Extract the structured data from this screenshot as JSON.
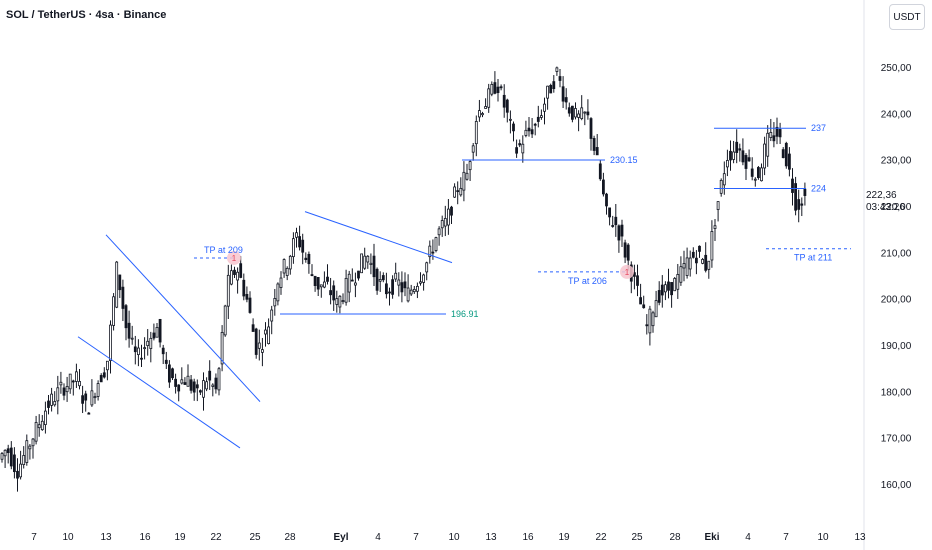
{
  "header": {
    "title": "SOL / TetherUS · 4sa · Binance",
    "currency": "USDT"
  },
  "last_price": {
    "value": "222,36",
    "countdown": "03:43:26"
  },
  "colors": {
    "candle": "#131722",
    "trendline": "#2962ff",
    "support_label": "#089981",
    "tp_marker": "#f7c5cf",
    "axis_text": "#131722"
  },
  "chart_data": {
    "type": "candlestick",
    "title": "SOL / TetherUS · 4sa · Binance",
    "y_axis": {
      "ticks": [
        250,
        240,
        230,
        220,
        210,
        200,
        190,
        180,
        170,
        160
      ],
      "tick_labels": [
        "250,00",
        "240,00",
        "230,00",
        "220,00",
        "210,00",
        "200,00",
        "190,00",
        "180,00",
        "170,00",
        "160,00"
      ],
      "range": [
        155,
        262
      ]
    },
    "x_axis": {
      "tick_labels": [
        "7",
        "10",
        "13",
        "16",
        "19",
        "22",
        "25",
        "28",
        "Eyl",
        "4",
        "7",
        "10",
        "13",
        "16",
        "19",
        "22",
        "25",
        "28",
        "Eki",
        "4",
        "7",
        "10",
        "13"
      ],
      "bold_labels": [
        "Eyl",
        "Eki"
      ]
    },
    "price_path": [
      [
        0,
        165
      ],
      [
        10,
        168
      ],
      [
        20,
        163
      ],
      [
        35,
        170
      ],
      [
        50,
        177
      ],
      [
        65,
        181
      ],
      [
        80,
        183
      ],
      [
        90,
        176
      ],
      [
        100,
        182
      ],
      [
        110,
        186
      ],
      [
        120,
        207
      ],
      [
        130,
        193
      ],
      [
        140,
        187
      ],
      [
        150,
        191
      ],
      [
        160,
        194
      ],
      [
        170,
        184
      ],
      [
        180,
        182
      ],
      [
        190,
        183
      ],
      [
        200,
        179
      ],
      [
        210,
        183
      ],
      [
        220,
        180
      ],
      [
        230,
        203
      ],
      [
        240,
        207
      ],
      [
        250,
        200
      ],
      [
        260,
        189
      ],
      [
        270,
        193
      ],
      [
        280,
        204
      ],
      [
        290,
        208
      ],
      [
        300,
        214
      ],
      [
        310,
        208
      ],
      [
        320,
        203
      ],
      [
        330,
        203
      ],
      [
        340,
        199
      ],
      [
        350,
        203
      ],
      [
        360,
        206
      ],
      [
        370,
        210
      ],
      [
        380,
        204
      ],
      [
        390,
        202
      ],
      [
        400,
        204
      ],
      [
        410,
        201
      ],
      [
        420,
        204
      ],
      [
        430,
        208
      ],
      [
        440,
        214
      ],
      [
        450,
        217
      ],
      [
        460,
        224
      ],
      [
        470,
        227
      ],
      [
        480,
        240
      ],
      [
        490,
        243
      ],
      [
        500,
        247
      ],
      [
        510,
        240
      ],
      [
        520,
        232
      ],
      [
        530,
        236
      ],
      [
        540,
        238
      ],
      [
        550,
        244
      ],
      [
        560,
        249
      ],
      [
        570,
        242
      ],
      [
        580,
        239
      ],
      [
        590,
        240
      ],
      [
        600,
        230
      ],
      [
        610,
        218
      ],
      [
        620,
        216
      ],
      [
        630,
        209
      ],
      [
        640,
        202
      ],
      [
        650,
        194
      ],
      [
        660,
        201
      ],
      [
        670,
        202
      ],
      [
        680,
        204
      ],
      [
        690,
        208
      ],
      [
        700,
        210
      ],
      [
        710,
        207
      ],
      [
        720,
        220
      ],
      [
        730,
        231
      ],
      [
        740,
        233
      ],
      [
        750,
        230
      ],
      [
        760,
        226
      ],
      [
        770,
        234
      ],
      [
        780,
        236
      ],
      [
        790,
        230
      ],
      [
        800,
        220
      ],
      [
        805,
        222
      ]
    ],
    "annotations": {
      "trendlines": [
        {
          "name": "wedge-upper",
          "from": [
            106,
            214
          ],
          "to": [
            260,
            178
          ]
        },
        {
          "name": "wedge-lower",
          "from": [
            78,
            192
          ],
          "to": [
            240,
            168
          ]
        },
        {
          "name": "triangle-upper",
          "from": [
            305,
            219
          ],
          "to": [
            452,
            208
          ]
        }
      ],
      "horizontal_levels": [
        {
          "label": "196.91",
          "value": 196.91,
          "x_from": 280,
          "x_to": 446
        },
        {
          "label": "230.15",
          "value": 230.15,
          "x_from": 462,
          "x_to": 605
        },
        {
          "label": "237",
          "value": 237,
          "x_from": 714,
          "x_to": 806
        },
        {
          "label": "224",
          "value": 224,
          "x_from": 714,
          "x_to": 806
        }
      ],
      "take_profit": [
        {
          "label": "TP at 209",
          "value": 209,
          "x_from": 194,
          "x_to": 234
        },
        {
          "label": "TP at 206",
          "value": 206,
          "x_from": 538,
          "x_to": 627
        },
        {
          "label": "TP at 211",
          "value": 211,
          "x_from": 766,
          "x_to": 851
        }
      ]
    }
  }
}
